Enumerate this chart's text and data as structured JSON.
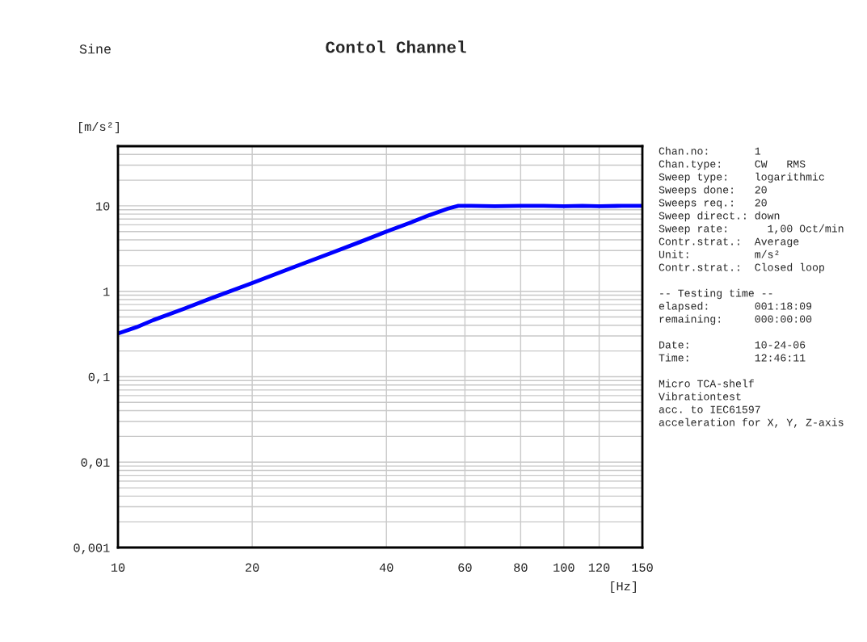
{
  "chart_data": {
    "type": "line",
    "title": "Contol Channel",
    "xlabel": "[Hz]",
    "ylabel": "[m/s²]",
    "x": [
      10,
      11,
      12,
      14,
      16,
      20,
      25,
      30,
      35,
      40,
      45,
      50,
      55,
      58,
      62,
      70,
      80,
      90,
      100,
      110,
      120,
      135,
      150
    ],
    "series": [
      {
        "color": "#0000ff",
        "values": [
          0.32,
          0.38,
          0.46,
          0.62,
          0.81,
          1.25,
          1.95,
          2.8,
          3.8,
          5.0,
          6.3,
          7.8,
          9.3,
          10,
          10,
          9.9,
          10,
          10,
          9.9,
          10,
          9.9,
          10,
          10
        ]
      }
    ],
    "log": "xy",
    "xlim": [
      10,
      150
    ],
    "ylim": [
      0.001,
      50
    ],
    "xticks": [
      10,
      20,
      40,
      60,
      80,
      100,
      120,
      150
    ],
    "yticks": [
      {
        "value": 0.001,
        "label": "0,001"
      },
      {
        "value": 0.01,
        "label": "0,01"
      },
      {
        "value": 0.1,
        "label": "0,1"
      },
      1,
      10
    ],
    "grid": true,
    "line_style": "solid",
    "marker": "none",
    "annotations": [
      "Sine",
      "Chan.no:       1",
      "Chan.type:     CW   RMS",
      "Sweep type:    logarithmic",
      "Sweeps done:   20",
      "Sweeps req.:   20",
      "Sweep direct.: down",
      "Sweep rate:      1,00 Oct/min",
      "Contr.strat.:  Average",
      "Unit:          m/s²",
      "Contr.strat.:  Closed loop",
      "-- Testing time --",
      "elapsed:       001:18:09",
      "remaining:     000:00:00",
      "Date:          10-24-06",
      "Time:          12:46:11",
      "Micro TCA-shelf",
      "Vibrationtest",
      "acc. to IEC61597",
      "acceleration for X, Y, Z-axis"
    ]
  }
}
